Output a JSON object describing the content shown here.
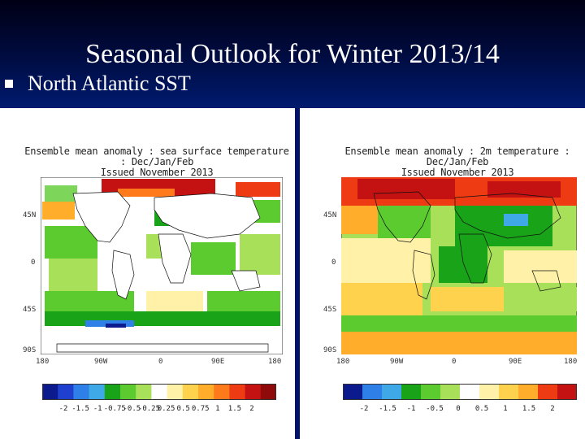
{
  "slide": {
    "title": "Seasonal Outlook for Winter 2013/14",
    "bullet": "North Atlantic SST"
  },
  "colors": {
    "header_dark": "#000015",
    "header_blue": "#001a6e",
    "divider": "#00126a"
  },
  "maps": [
    {
      "caption_line1": "Ensemble mean anomaly : sea surface temperature : Dec/Jan/Feb",
      "caption_line2": "Issued November 2013",
      "lat_labels": [
        "45N",
        "0",
        "45S",
        "90S"
      ],
      "lon_labels": [
        "180",
        "90W",
        "0",
        "90E",
        "180"
      ],
      "scale_labels": [
        "-2",
        "-1.5",
        "-1",
        "-0.75",
        "-0.5",
        "-0.25",
        "0.25",
        "0.5",
        "0.75",
        "1",
        "1.5",
        "2"
      ],
      "colorbar": [
        "#0b1a8c",
        "#1f3fcf",
        "#2f7fe8",
        "#3fa9e8",
        "#19a319",
        "#5ccb2f",
        "#a8e05a",
        "#ffffff",
        "#fff2a8",
        "#ffd24d",
        "#ffad2a",
        "#ff7a1a",
        "#ef3b14",
        "#c41111",
        "#8f0a0a"
      ]
    },
    {
      "caption_line1": "Ensemble mean anomaly : 2m temperature : Dec/Jan/Feb",
      "caption_line2": "Issued November 2013",
      "lat_labels": [
        "45N",
        "0",
        "45S",
        "90S"
      ],
      "lon_labels": [
        "180",
        "90W",
        "0",
        "90E",
        "180"
      ],
      "scale_labels": [
        "-2",
        "-1.5",
        "-1",
        "-0.5",
        "0",
        "0.5",
        "1",
        "1.5",
        "2"
      ],
      "colorbar": [
        "#0b1a8c",
        "#2f7fe8",
        "#3fa9e8",
        "#19a319",
        "#5ccb2f",
        "#a8e05a",
        "#ffffff",
        "#fff2a8",
        "#ffd24d",
        "#ffad2a",
        "#ef3b14",
        "#c41111"
      ]
    }
  ]
}
